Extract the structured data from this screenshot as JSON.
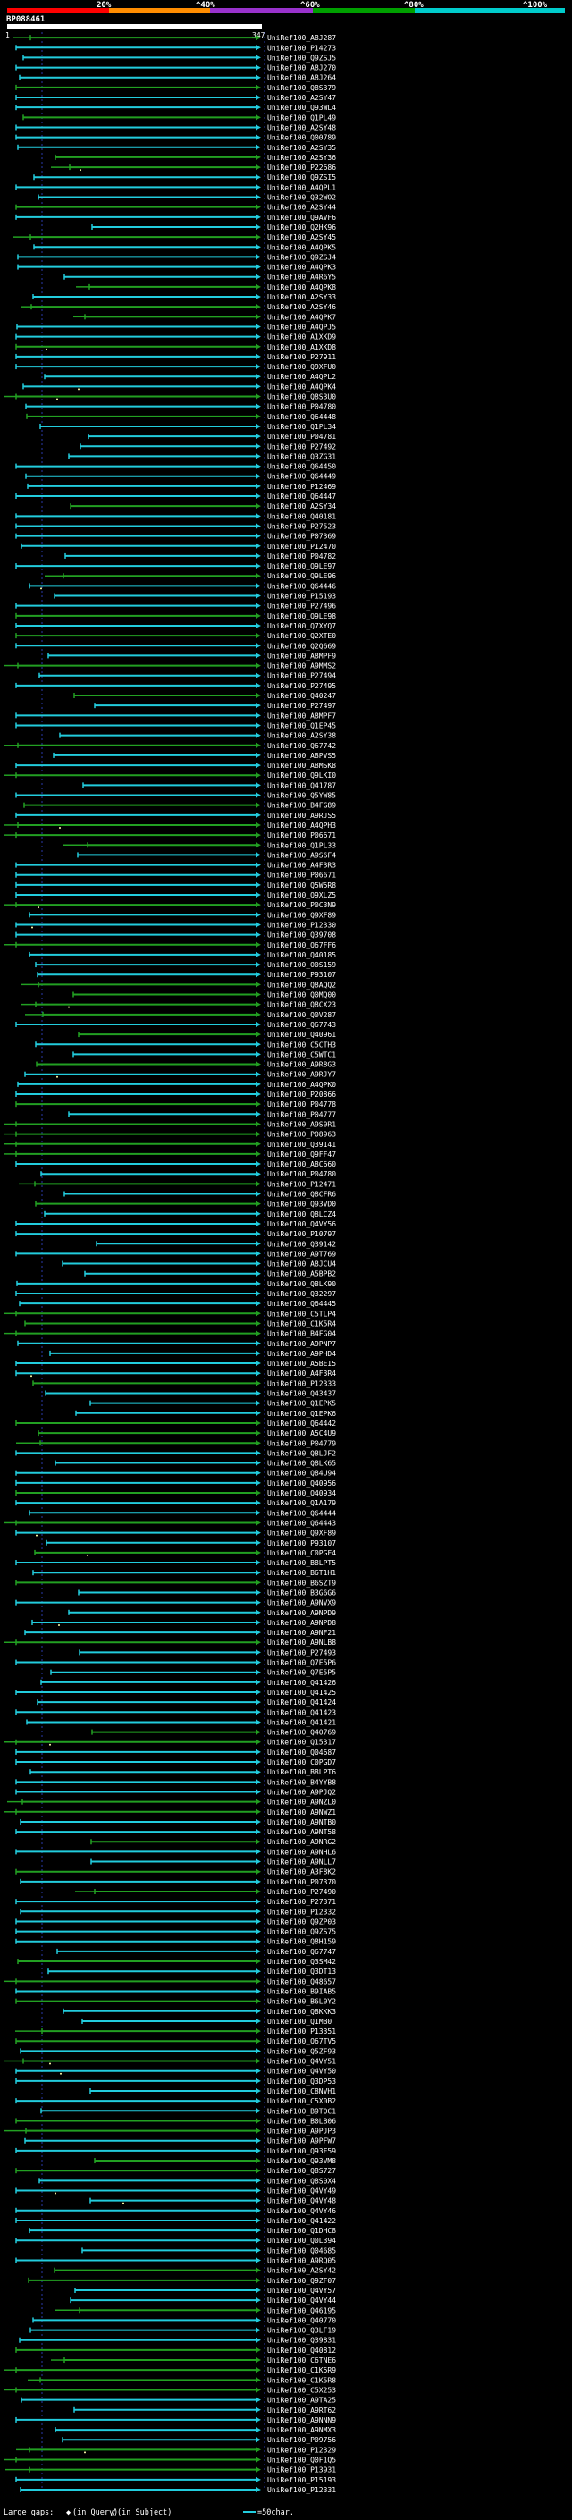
{
  "query": {
    "name": "BP088461",
    "start": "1",
    "end": "347",
    "length": 347
  },
  "identity_scale": {
    "ticks": [
      "20%",
      "^40%",
      "^60%",
      "^80%",
      "^100%"
    ],
    "colors": [
      "#ff0000",
      "#ff8c00",
      "#9932cc",
      "#00a000",
      "#00cccc"
    ]
  },
  "colors": {
    "high": "#22ccdd",
    "mid": "#22a022",
    "guide": "#2a3aaa"
  },
  "legend": {
    "large_gaps": "Large gaps:",
    "in_query_symbol": "◆",
    "in_query": "(in Query)",
    "in_subject_symbol": "/",
    "in_subject": "(in Subject)",
    "scale": "=50char."
  },
  "chart_data": {
    "type": "alignment-overview",
    "title": "BP088461",
    "x_axis": {
      "start": 1,
      "end": 347,
      "unit": "query residues"
    },
    "hits": [
      "UniRef100_A8J287",
      "UniRef100_P14273",
      "UniRef100_Q9ZSJ5",
      "UniRef100_A8J270",
      "UniRef100_A8J264",
      "UniRef100_Q8S379",
      "UniRef100_A2SY47",
      "UniRef100_Q93WL4",
      "UniRef100_Q1PL49",
      "UniRef100_A2SY48",
      "UniRef100_Q00789",
      "UniRef100_A2SY35",
      "UniRef100_A2SY36",
      "UniRef100_P22686",
      "UniRef100_Q9ZSI5",
      "UniRef100_A4QPL1",
      "UniRef100_Q32WO2",
      "UniRef100_A2SY44",
      "UniRef100_Q9AVF6",
      "UniRef100_Q2HK96",
      "UniRef100_A2SY45",
      "UniRef100_A4QPK5",
      "UniRef100_Q9ZSJ4",
      "UniRef100_A4QPK3",
      "UniRef100_A4R6Y5",
      "UniRef100_A4QPK8",
      "UniRef100_A2SY33",
      "UniRef100_A2SY46",
      "UniRef100_A4QPK7",
      "UniRef100_A4QPJ5",
      "UniRef100_A1XKD9",
      "UniRef100_A1XKD8",
      "UniRef100_P27911",
      "UniRef100_Q9XFU0",
      "UniRef100_A4QPL2",
      "UniRef100_A4QPK4",
      "UniRef100_Q8S3U0",
      "UniRef100_P04780",
      "UniRef100_Q64448",
      "UniRef100_Q1PL34",
      "UniRef100_P04781",
      "UniRef100_P27492",
      "UniRef100_Q3ZG31",
      "UniRef100_Q64450",
      "UniRef100_Q64449",
      "UniRef100_P12469",
      "UniRef100_Q64447",
      "UniRef100_A2SY34",
      "UniRef100_Q40181",
      "UniRef100_P27523",
      "UniRef100_P07369",
      "UniRef100_P12470",
      "UniRef100_P04782",
      "UniRef100_Q9LE97",
      "UniRef100_Q9LE96",
      "UniRef100_Q64446",
      "UniRef100_P15193",
      "UniRef100_P27496",
      "UniRef100_Q9LE98",
      "UniRef100_Q7XYQ7",
      "UniRef100_Q2XTE0",
      "UniRef100_Q2Q669",
      "UniRef100_A8MPF9",
      "UniRef100_A9MMS2",
      "UniRef100_P27494",
      "UniRef100_P27495",
      "UniRef100_Q40247",
      "UniRef100_P27497",
      "UniRef100_A8MPF7",
      "UniRef100_Q1EP45",
      "UniRef100_A2SY38",
      "UniRef100_Q67742",
      "UniRef100_A8PVS5",
      "UniRef100_A8MSK8",
      "UniRef100_Q9LKI0",
      "UniRef100_Q41787",
      "UniRef100_Q5YW85",
      "UniRef100_B4FG89",
      "UniRef100_A9RJS5",
      "UniRef100_A4QPH3",
      "UniRef100_P06671",
      "UniRef100_Q1PL33",
      "UniRef100_A9S6F4",
      "UniRef100_A4F3R3",
      "UniRef100_P06671",
      "UniRef100_Q5W5R8",
      "UniRef100_Q9XLZ5",
      "UniRef100_P0C3N9",
      "UniRef100_Q9XF89",
      "UniRef100_P12330",
      "UniRef100_Q39708",
      "UniRef100_Q67FF6",
      "UniRef100_Q40185",
      "UniRef100_O0S159",
      "UniRef100_P93107",
      "UniRef100_Q8AQQ2",
      "UniRef100_Q0MQ00",
      "UniRef100_Q8CX23",
      "UniRef100_Q0V287",
      "UniRef100_Q67743",
      "UniRef100_Q40961",
      "UniRef100_C5CTH3",
      "UniRef100_C5WTC1",
      "UniRef100_A9R8G3",
      "UniRef100_A9RJY7",
      "UniRef100_A4QPK0",
      "UniRef100_P20866",
      "UniRef100_P04778",
      "UniRef100_P04777",
      "UniRef100_A9S0R1",
      "UniRef100_P08963",
      "UniRef100_Q39141",
      "UniRef100_Q9FF47",
      "UniRef100_A8C660",
      "UniRef100_P04780",
      "UniRef100_P12471",
      "UniRef100_Q8CFR6",
      "UniRef100_Q93VD0",
      "UniRef100_Q8LCZ4",
      "UniRef100_Q4VY56",
      "UniRef100_P10797",
      "UniRef100_Q39142",
      "UniRef100_A9T769",
      "UniRef100_A8JCU4",
      "UniRef100_A5BPB2",
      "UniRef100_Q8LK90",
      "UniRef100_Q32297",
      "UniRef100_Q64445",
      "UniRef100_C5TLP4",
      "UniRef100_C1K5R4",
      "UniRef100_B4FG04",
      "UniRef100_A9PNP7",
      "UniRef100_A9PHD4",
      "UniRef100_A5BEI5",
      "UniRef100_A4F3R4",
      "UniRef100_P12333",
      "UniRef100_Q43437",
      "UniRef100_Q1EPK5",
      "UniRef100_Q1EPK6",
      "UniRef100_Q64442",
      "UniRef100_A5C4U9",
      "UniRef100_P04779",
      "UniRef100_Q8LJF2",
      "UniRef100_Q8LK65",
      "UniRef100_Q84U94",
      "UniRef100_Q40956",
      "UniRef100_Q40934",
      "UniRef100_Q1A179",
      "UniRef100_Q64444",
      "UniRef100_Q64443",
      "UniRef100_Q9XF89",
      "UniRef100_P93107",
      "UniRef100_C0PGF4",
      "UniRef100_B8LPT5",
      "UniRef100_B6T1H1",
      "UniRef100_B6SZT9",
      "UniRef100_B3G6G6",
      "UniRef100_A9NVX9",
      "UniRef100_A9NPD9",
      "UniRef100_A9NPD8",
      "UniRef100_A9NF21",
      "UniRef100_A9NLB8",
      "UniRef100_P27493",
      "UniRef100_Q7E5P6",
      "UniRef100_Q7E5P5",
      "UniRef100_Q41426",
      "UniRef100_Q41425",
      "UniRef100_Q41424",
      "UniRef100_Q41423",
      "UniRef100_Q41421",
      "UniRef100_Q40769",
      "UniRef100_Q15317",
      "UniRef100_Q04687",
      "UniRef100_C0PGD7",
      "UniRef100_B8LPT6",
      "UniRef100_B4YYB8",
      "UniRef100_A9PJQ2",
      "UniRef100_A9NZL0",
      "UniRef100_A9NWZ1",
      "UniRef100_A9NTB0",
      "UniRef100_A9NT58",
      "UniRef100_A9NRG2",
      "UniRef100_A9NHL6",
      "UniRef100_A9NLL7",
      "UniRef100_A3F8K2",
      "UniRef100_P07370",
      "UniRef100_P27490",
      "UniRef100_P27371",
      "UniRef100_P12332",
      "UniRef100_Q9ZP03",
      "UniRef100_Q9ZS75",
      "UniRef100_Q8H159",
      "UniRef100_Q67747",
      "UniRef100_Q3SM42",
      "UniRef100_Q3DT13",
      "UniRef100_Q48657",
      "UniRef100_B9IAB5",
      "UniRef100_B6L0Y2",
      "UniRef100_Q8KKK3",
      "UniRef100_Q1MB0",
      "UniRef100_P13351",
      "UniRef100_Q67TV5",
      "UniRef100_Q5ZF93",
      "UniRef100_Q4VY51",
      "UniRef100_Q4VY50",
      "UniRef100_Q3DP53",
      "UniRef100_C8NVH1",
      "UniRef100_C5X0B2",
      "UniRef100_B9T0C1",
      "UniRef100_B0LB06",
      "UniRef100_A9PJP3",
      "UniRef100_A9PFW7",
      "UniRef100_Q93F59",
      "UniRef100_Q93VM8",
      "UniRef100_Q8S727",
      "UniRef100_Q8S0X4",
      "UniRef100_Q4VY49",
      "UniRef100_Q4VY48",
      "UniRef100_Q4VY46",
      "UniRef100_Q41422",
      "UniRef100_Q1DHC8",
      "UniRef100_Q0L394",
      "UniRef100_Q04685",
      "UniRef100_A9RQ05",
      "UniRef100_A2SY42",
      "UniRef100_Q9ZF07",
      "UniRef100_Q4VY57",
      "UniRef100_Q4VY44",
      "UniRef100_Q46195",
      "UniRef100_Q40770",
      "UniRef100_Q3LF19",
      "UniRef100_Q39831",
      "UniRef100_Q40812",
      "UniRef100_C6TNE6",
      "UniRef100_C1K5R9",
      "UniRef100_C1K5R8",
      "UniRef100_C5X253",
      "UniRef100_A9TA25",
      "UniRef100_A9RT62",
      "UniRef100_A9NNN9",
      "UniRef100_A9NMX3",
      "UniRef100_P09756",
      "UniRef100_P12329",
      "UniRef100_Q0F1Q5",
      "UniRef100_P13931",
      "UniRef100_P15193",
      "UniRef100_P12331"
    ]
  }
}
